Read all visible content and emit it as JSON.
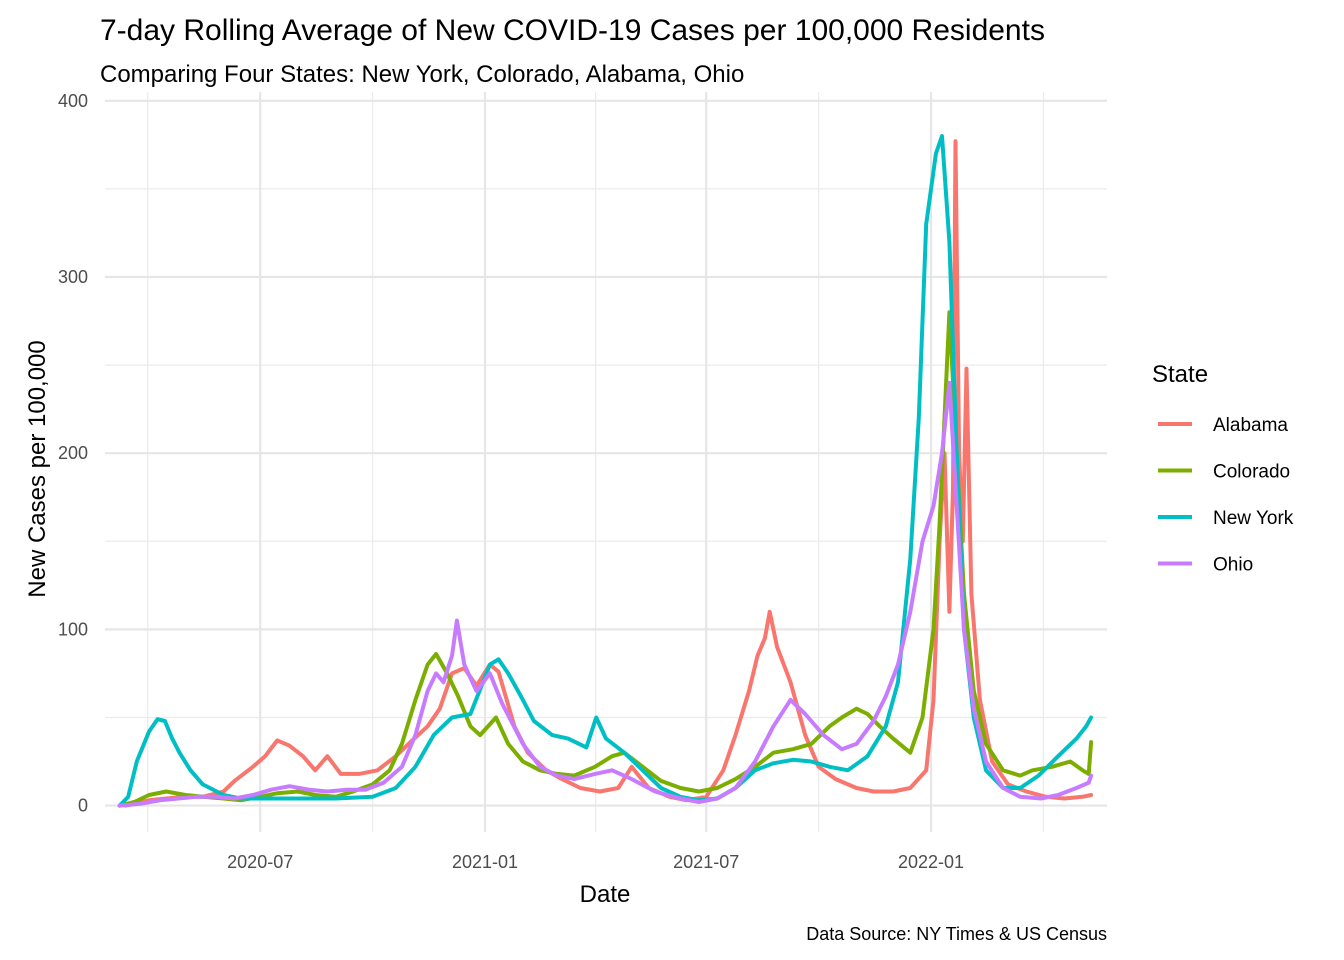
{
  "chart_data": {
    "type": "line",
    "title": "7-day Rolling Average of New COVID-19 Cases per 100,000 Residents",
    "subtitle": "Comparing Four States: New York, Colorado, Alabama, Ohio",
    "xlabel": "Date",
    "ylabel": "New Cases per 100,000",
    "caption": "Data Source: NY Times & US Census",
    "xlim": [
      "2020-02-25",
      "2022-05-25"
    ],
    "ylim": [
      -15,
      405
    ],
    "x_ticks": [
      "2020-07",
      "2021-01",
      "2021-07",
      "2022-01"
    ],
    "y_ticks": [
      0,
      100,
      200,
      300,
      400
    ],
    "grid": true,
    "legend": {
      "title": "State",
      "position": "right"
    },
    "series": [
      {
        "name": "Alabama",
        "color": "#F8766D",
        "points": [
          [
            "2020-03-13",
            0
          ],
          [
            "2020-04-01",
            3
          ],
          [
            "2020-04-15",
            4
          ],
          [
            "2020-05-01",
            5
          ],
          [
            "2020-05-15",
            5
          ],
          [
            "2020-06-01",
            8
          ],
          [
            "2020-06-10",
            14
          ],
          [
            "2020-06-25",
            22
          ],
          [
            "2020-07-05",
            28
          ],
          [
            "2020-07-15",
            37
          ],
          [
            "2020-07-25",
            34
          ],
          [
            "2020-08-05",
            28
          ],
          [
            "2020-08-15",
            20
          ],
          [
            "2020-08-25",
            28
          ],
          [
            "2020-09-05",
            18
          ],
          [
            "2020-09-20",
            18
          ],
          [
            "2020-10-05",
            20
          ],
          [
            "2020-10-20",
            28
          ],
          [
            "2020-11-01",
            36
          ],
          [
            "2020-11-15",
            45
          ],
          [
            "2020-11-25",
            55
          ],
          [
            "2020-12-05",
            75
          ],
          [
            "2020-12-15",
            78
          ],
          [
            "2020-12-25",
            68
          ],
          [
            "2021-01-05",
            80
          ],
          [
            "2021-01-12",
            76
          ],
          [
            "2021-01-25",
            45
          ],
          [
            "2021-02-05",
            30
          ],
          [
            "2021-02-20",
            20
          ],
          [
            "2021-03-05",
            15
          ],
          [
            "2021-03-20",
            10
          ],
          [
            "2021-04-05",
            8
          ],
          [
            "2021-04-20",
            10
          ],
          [
            "2021-05-01",
            22
          ],
          [
            "2021-05-15",
            10
          ],
          [
            "2021-06-01",
            5
          ],
          [
            "2021-06-15",
            3
          ],
          [
            "2021-07-01",
            5
          ],
          [
            "2021-07-15",
            20
          ],
          [
            "2021-07-25",
            40
          ],
          [
            "2021-08-05",
            65
          ],
          [
            "2021-08-12",
            85
          ],
          [
            "2021-08-18",
            95
          ],
          [
            "2021-08-22",
            110
          ],
          [
            "2021-08-28",
            90
          ],
          [
            "2021-09-08",
            70
          ],
          [
            "2021-09-20",
            40
          ],
          [
            "2021-10-01",
            22
          ],
          [
            "2021-10-15",
            15
          ],
          [
            "2021-11-01",
            10
          ],
          [
            "2021-11-15",
            8
          ],
          [
            "2021-12-01",
            8
          ],
          [
            "2021-12-15",
            10
          ],
          [
            "2021-12-28",
            20
          ],
          [
            "2022-01-03",
            60
          ],
          [
            "2022-01-08",
            150
          ],
          [
            "2022-01-12",
            200
          ],
          [
            "2022-01-16",
            110
          ],
          [
            "2022-01-19",
            180
          ],
          [
            "2022-01-21",
            377
          ],
          [
            "2022-01-24",
            200
          ],
          [
            "2022-01-27",
            150
          ],
          [
            "2022-01-30",
            248
          ],
          [
            "2022-02-03",
            120
          ],
          [
            "2022-02-10",
            60
          ],
          [
            "2022-02-20",
            25
          ],
          [
            "2022-03-05",
            12
          ],
          [
            "2022-03-20",
            8
          ],
          [
            "2022-04-05",
            5
          ],
          [
            "2022-04-20",
            4
          ],
          [
            "2022-05-05",
            5
          ],
          [
            "2022-05-12",
            6
          ]
        ]
      },
      {
        "name": "Colorado",
        "color": "#7CAE00",
        "points": [
          [
            "2020-03-08",
            0
          ],
          [
            "2020-03-20",
            2
          ],
          [
            "2020-04-01",
            6
          ],
          [
            "2020-04-15",
            8
          ],
          [
            "2020-05-01",
            6
          ],
          [
            "2020-05-15",
            5
          ],
          [
            "2020-06-01",
            4
          ],
          [
            "2020-06-15",
            3
          ],
          [
            "2020-07-01",
            5
          ],
          [
            "2020-07-15",
            7
          ],
          [
            "2020-08-01",
            8
          ],
          [
            "2020-08-15",
            6
          ],
          [
            "2020-09-01",
            5
          ],
          [
            "2020-09-15",
            8
          ],
          [
            "2020-10-01",
            12
          ],
          [
            "2020-10-15",
            20
          ],
          [
            "2020-10-25",
            35
          ],
          [
            "2020-11-05",
            60
          ],
          [
            "2020-11-15",
            80
          ],
          [
            "2020-11-22",
            86
          ],
          [
            "2020-12-01",
            75
          ],
          [
            "2020-12-10",
            62
          ],
          [
            "2020-12-20",
            45
          ],
          [
            "2020-12-28",
            40
          ],
          [
            "2021-01-10",
            50
          ],
          [
            "2021-01-20",
            35
          ],
          [
            "2021-02-01",
            25
          ],
          [
            "2021-02-15",
            20
          ],
          [
            "2021-03-01",
            18
          ],
          [
            "2021-03-15",
            17
          ],
          [
            "2021-04-01",
            22
          ],
          [
            "2021-04-15",
            28
          ],
          [
            "2021-04-25",
            30
          ],
          [
            "2021-05-10",
            22
          ],
          [
            "2021-05-25",
            14
          ],
          [
            "2021-06-10",
            10
          ],
          [
            "2021-06-25",
            8
          ],
          [
            "2021-07-10",
            10
          ],
          [
            "2021-07-25",
            15
          ],
          [
            "2021-08-10",
            22
          ],
          [
            "2021-08-25",
            30
          ],
          [
            "2021-09-10",
            32
          ],
          [
            "2021-09-25",
            35
          ],
          [
            "2021-10-10",
            45
          ],
          [
            "2021-10-20",
            50
          ],
          [
            "2021-11-01",
            55
          ],
          [
            "2021-11-10",
            52
          ],
          [
            "2021-11-20",
            45
          ],
          [
            "2021-12-01",
            38
          ],
          [
            "2021-12-15",
            30
          ],
          [
            "2021-12-25",
            50
          ],
          [
            "2022-01-03",
            100
          ],
          [
            "2022-01-08",
            160
          ],
          [
            "2022-01-12",
            220
          ],
          [
            "2022-01-16",
            280
          ],
          [
            "2022-01-22",
            200
          ],
          [
            "2022-01-28",
            120
          ],
          [
            "2022-02-05",
            65
          ],
          [
            "2022-02-15",
            35
          ],
          [
            "2022-03-01",
            20
          ],
          [
            "2022-03-15",
            17
          ],
          [
            "2022-03-25",
            20
          ],
          [
            "2022-04-10",
            22
          ],
          [
            "2022-04-25",
            25
          ],
          [
            "2022-05-05",
            20
          ],
          [
            "2022-05-10",
            18
          ],
          [
            "2022-05-12",
            36
          ]
        ]
      },
      {
        "name": "New York",
        "color": "#00BFC4",
        "points": [
          [
            "2020-03-08",
            0
          ],
          [
            "2020-03-15",
            5
          ],
          [
            "2020-03-22",
            25
          ],
          [
            "2020-04-01",
            42
          ],
          [
            "2020-04-08",
            49
          ],
          [
            "2020-04-14",
            48
          ],
          [
            "2020-04-20",
            38
          ],
          [
            "2020-04-26",
            30
          ],
          [
            "2020-05-05",
            20
          ],
          [
            "2020-05-15",
            12
          ],
          [
            "2020-06-01",
            6
          ],
          [
            "2020-06-15",
            4
          ],
          [
            "2020-07-01",
            4
          ],
          [
            "2020-08-01",
            4
          ],
          [
            "2020-09-01",
            4
          ],
          [
            "2020-10-01",
            5
          ],
          [
            "2020-10-20",
            10
          ],
          [
            "2020-11-05",
            22
          ],
          [
            "2020-11-20",
            40
          ],
          [
            "2020-12-05",
            50
          ],
          [
            "2020-12-20",
            52
          ],
          [
            "2021-01-05",
            80
          ],
          [
            "2021-01-12",
            83
          ],
          [
            "2021-01-20",
            75
          ],
          [
            "2021-02-01",
            60
          ],
          [
            "2021-02-10",
            48
          ],
          [
            "2021-02-25",
            40
          ],
          [
            "2021-03-10",
            38
          ],
          [
            "2021-03-25",
            33
          ],
          [
            "2021-04-02",
            50
          ],
          [
            "2021-04-10",
            38
          ],
          [
            "2021-04-25",
            30
          ],
          [
            "2021-05-10",
            20
          ],
          [
            "2021-05-25",
            10
          ],
          [
            "2021-06-10",
            5
          ],
          [
            "2021-06-25",
            3
          ],
          [
            "2021-07-10",
            4
          ],
          [
            "2021-07-25",
            10
          ],
          [
            "2021-08-10",
            20
          ],
          [
            "2021-08-25",
            24
          ],
          [
            "2021-09-10",
            26
          ],
          [
            "2021-09-25",
            25
          ],
          [
            "2021-10-10",
            22
          ],
          [
            "2021-10-25",
            20
          ],
          [
            "2021-11-10",
            28
          ],
          [
            "2021-11-25",
            45
          ],
          [
            "2021-12-05",
            70
          ],
          [
            "2021-12-15",
            140
          ],
          [
            "2021-12-22",
            220
          ],
          [
            "2021-12-28",
            330
          ],
          [
            "2022-01-05",
            370
          ],
          [
            "2022-01-10",
            380
          ],
          [
            "2022-01-16",
            320
          ],
          [
            "2022-01-22",
            200
          ],
          [
            "2022-01-28",
            100
          ],
          [
            "2022-02-05",
            50
          ],
          [
            "2022-02-15",
            20
          ],
          [
            "2022-03-01",
            10
          ],
          [
            "2022-03-15",
            10
          ],
          [
            "2022-03-30",
            17
          ],
          [
            "2022-04-15",
            28
          ],
          [
            "2022-04-30",
            38
          ],
          [
            "2022-05-08",
            45
          ],
          [
            "2022-05-12",
            50
          ]
        ]
      },
      {
        "name": "Ohio",
        "color": "#C77CFF",
        "points": [
          [
            "2020-03-08",
            0
          ],
          [
            "2020-03-25",
            1
          ],
          [
            "2020-04-10",
            3
          ],
          [
            "2020-04-25",
            4
          ],
          [
            "2020-05-10",
            5
          ],
          [
            "2020-05-25",
            5
          ],
          [
            "2020-06-10",
            4
          ],
          [
            "2020-06-25",
            6
          ],
          [
            "2020-07-10",
            9
          ],
          [
            "2020-07-25",
            11
          ],
          [
            "2020-08-10",
            9
          ],
          [
            "2020-08-25",
            8
          ],
          [
            "2020-09-10",
            9
          ],
          [
            "2020-09-25",
            9
          ],
          [
            "2020-10-10",
            13
          ],
          [
            "2020-10-25",
            22
          ],
          [
            "2020-11-05",
            40
          ],
          [
            "2020-11-15",
            65
          ],
          [
            "2020-11-22",
            75
          ],
          [
            "2020-11-28",
            70
          ],
          [
            "2020-12-05",
            85
          ],
          [
            "2020-12-09",
            105
          ],
          [
            "2020-12-15",
            80
          ],
          [
            "2020-12-25",
            65
          ],
          [
            "2021-01-05",
            75
          ],
          [
            "2021-01-15",
            58
          ],
          [
            "2021-02-01",
            35
          ],
          [
            "2021-02-15",
            22
          ],
          [
            "2021-03-01",
            17
          ],
          [
            "2021-03-15",
            15
          ],
          [
            "2021-04-01",
            18
          ],
          [
            "2021-04-15",
            20
          ],
          [
            "2021-05-01",
            15
          ],
          [
            "2021-05-20",
            8
          ],
          [
            "2021-06-10",
            4
          ],
          [
            "2021-06-25",
            2
          ],
          [
            "2021-07-10",
            4
          ],
          [
            "2021-07-25",
            10
          ],
          [
            "2021-08-10",
            25
          ],
          [
            "2021-08-25",
            45
          ],
          [
            "2021-09-08",
            60
          ],
          [
            "2021-09-20",
            52
          ],
          [
            "2021-10-05",
            40
          ],
          [
            "2021-10-20",
            32
          ],
          [
            "2021-11-01",
            35
          ],
          [
            "2021-11-15",
            48
          ],
          [
            "2021-11-25",
            62
          ],
          [
            "2021-12-05",
            80
          ],
          [
            "2021-12-15",
            110
          ],
          [
            "2021-12-25",
            150
          ],
          [
            "2022-01-03",
            170
          ],
          [
            "2022-01-10",
            200
          ],
          [
            "2022-01-16",
            240
          ],
          [
            "2022-01-22",
            170
          ],
          [
            "2022-01-28",
            100
          ],
          [
            "2022-02-05",
            55
          ],
          [
            "2022-02-15",
            25
          ],
          [
            "2022-03-01",
            10
          ],
          [
            "2022-03-15",
            5
          ],
          [
            "2022-04-01",
            4
          ],
          [
            "2022-04-15",
            6
          ],
          [
            "2022-04-30",
            10
          ],
          [
            "2022-05-10",
            13
          ],
          [
            "2022-05-12",
            17
          ]
        ]
      }
    ]
  }
}
